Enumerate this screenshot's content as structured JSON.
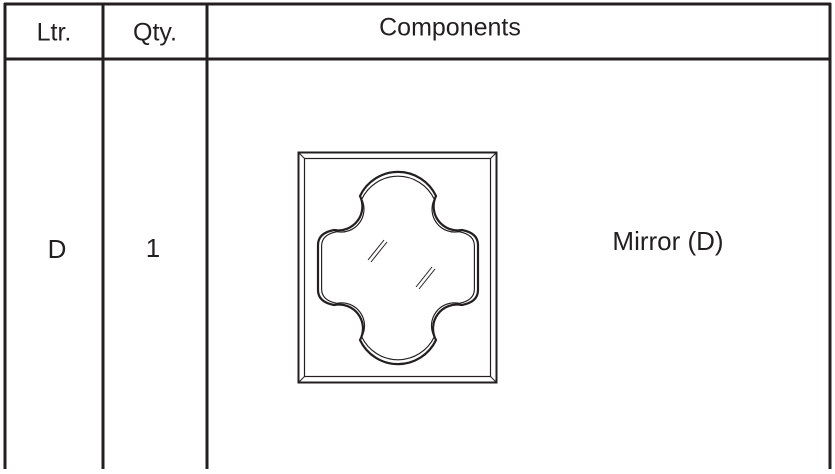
{
  "table": {
    "header": [
      "Ltr.",
      "Qty.",
      "Components"
    ],
    "rows": [
      [
        "D",
        "1",
        "Mirror (D)"
      ]
    ]
  }
}
